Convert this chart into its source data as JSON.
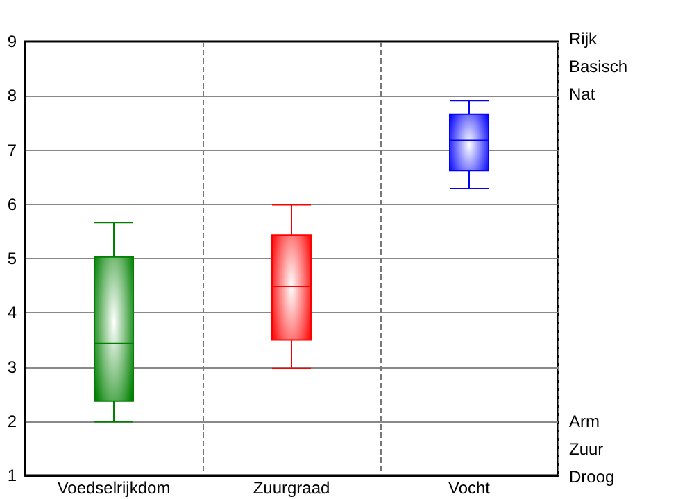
{
  "chart_data": {
    "type": "box",
    "categories": [
      "Voedselrijkdom",
      "Zuurgraad",
      "Vocht"
    ],
    "boxes": [
      {
        "low": 1.99,
        "q1": 2.37,
        "median": 3.43,
        "q3": 5.03,
        "high": 5.66
      },
      {
        "low": 2.97,
        "q1": 3.5,
        "median": 4.49,
        "q3": 5.43,
        "high": 5.99
      },
      {
        "low": 6.29,
        "q1": 6.62,
        "median": 7.18,
        "q3": 7.66,
        "high": 7.91
      }
    ],
    "colors": [
      "#008000",
      "#ff0000",
      "#0000ff"
    ],
    "ylim": [
      1,
      9
    ],
    "yticks": [
      1,
      2,
      3,
      4,
      5,
      6,
      7,
      8,
      9
    ],
    "grid": true,
    "annotations": [
      "Rijk",
      "Basisch",
      "Nat",
      "Arm",
      "Zuur",
      "Droog"
    ]
  }
}
